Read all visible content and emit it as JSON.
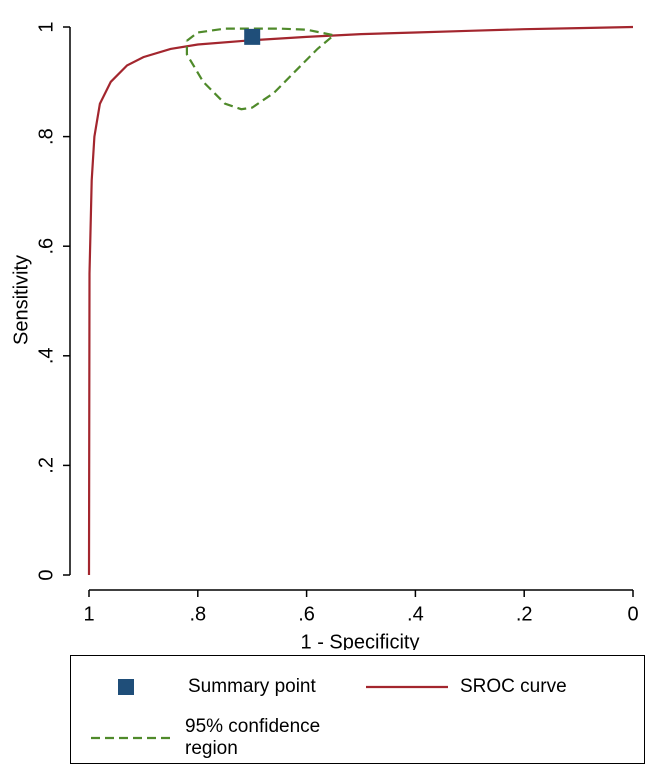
{
  "chart_data": {
    "type": "line",
    "x_label": "1 - Specificity",
    "y_label": "Sensitivity",
    "xlim": [
      1,
      0
    ],
    "ylim": [
      0,
      1
    ],
    "xticks": [
      1,
      {
        "value": 0.8,
        "label": ".8"
      },
      {
        "value": 0.6,
        "label": ".6"
      },
      {
        "value": 0.4,
        "label": ".4"
      },
      {
        "value": 0.2,
        "label": ".2"
      },
      0
    ],
    "yticks": [
      0,
      {
        "value": 0.2,
        "label": ".2"
      },
      {
        "value": 0.4,
        "label": ".4"
      },
      {
        "value": 0.6,
        "label": ".6"
      },
      {
        "value": 0.8,
        "label": ".8"
      },
      1
    ],
    "series": [
      {
        "name": "Summary point",
        "color": "#1f4e79",
        "marker": "square",
        "x": [
          0.7
        ],
        "y": [
          0.982
        ]
      },
      {
        "name": "SROC curve",
        "color": "#a3262e",
        "x": [
          1,
          0.999,
          0.995,
          0.99,
          0.98,
          0.96,
          0.93,
          0.9,
          0.85,
          0.8,
          0.7,
          0.6,
          0.5,
          0.4,
          0.3,
          0.2,
          0.1,
          0
        ],
        "y": [
          0,
          0.55,
          0.72,
          0.8,
          0.86,
          0.9,
          0.93,
          0.945,
          0.96,
          0.968,
          0.976,
          0.982,
          0.987,
          0.99,
          0.993,
          0.996,
          0.998,
          1
        ]
      },
      {
        "name": "95% confidence region",
        "color": "#4f8a2a",
        "dashed": true,
        "x": [
          0.82,
          0.8,
          0.75,
          0.65,
          0.6,
          0.55,
          0.58,
          0.62,
          0.66,
          0.7,
          0.72,
          0.75,
          0.79,
          0.82,
          0.82
        ],
        "y": [
          0.975,
          0.99,
          0.997,
          0.997,
          0.995,
          0.985,
          0.96,
          0.92,
          0.88,
          0.853,
          0.85,
          0.86,
          0.9,
          0.95,
          0.975
        ]
      }
    ]
  }
}
